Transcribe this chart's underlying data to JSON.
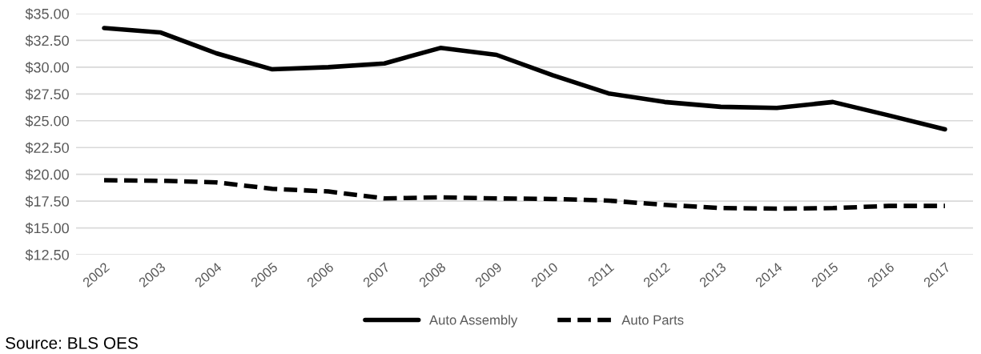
{
  "chart_data": {
    "type": "line",
    "categories": [
      "2002",
      "2003",
      "2004",
      "2005",
      "2006",
      "2007",
      "2008",
      "2009",
      "2010",
      "2011",
      "2012",
      "2013",
      "2014",
      "2015",
      "2016",
      "2017"
    ],
    "series": [
      {
        "name": "Auto Assembly",
        "color": "#000000",
        "line_style": "solid",
        "values": [
          33.65,
          33.25,
          31.3,
          29.8,
          30.0,
          30.35,
          31.8,
          31.15,
          29.25,
          27.55,
          26.75,
          26.3,
          26.2,
          26.75,
          25.5,
          24.2
        ]
      },
      {
        "name": "Auto Parts",
        "color": "#000000",
        "line_style": "dashed",
        "values": [
          19.45,
          19.4,
          19.25,
          18.65,
          18.4,
          17.75,
          17.85,
          17.75,
          17.7,
          17.55,
          17.15,
          16.85,
          16.8,
          16.85,
          17.05,
          17.05
        ]
      }
    ],
    "ylim": [
      12.5,
      35
    ],
    "yticks": [
      {
        "value": 12.5,
        "label": "$12.50"
      },
      {
        "value": 15,
        "label": "$15.00"
      },
      {
        "value": 17.5,
        "label": "$17.50"
      },
      {
        "value": 20,
        "label": "$20.00"
      },
      {
        "value": 22.5,
        "label": "$22.50"
      },
      {
        "value": 25,
        "label": "$25.00"
      },
      {
        "value": 27.5,
        "label": "$27.50"
      },
      {
        "value": 30,
        "label": "$30.00"
      },
      {
        "value": 32.5,
        "label": "$32.50"
      },
      {
        "value": 35,
        "label": "$35.00"
      }
    ],
    "grid": "y",
    "legend": "bottom",
    "marker": "none",
    "annotations": [
      "Source: BLS OES"
    ]
  }
}
